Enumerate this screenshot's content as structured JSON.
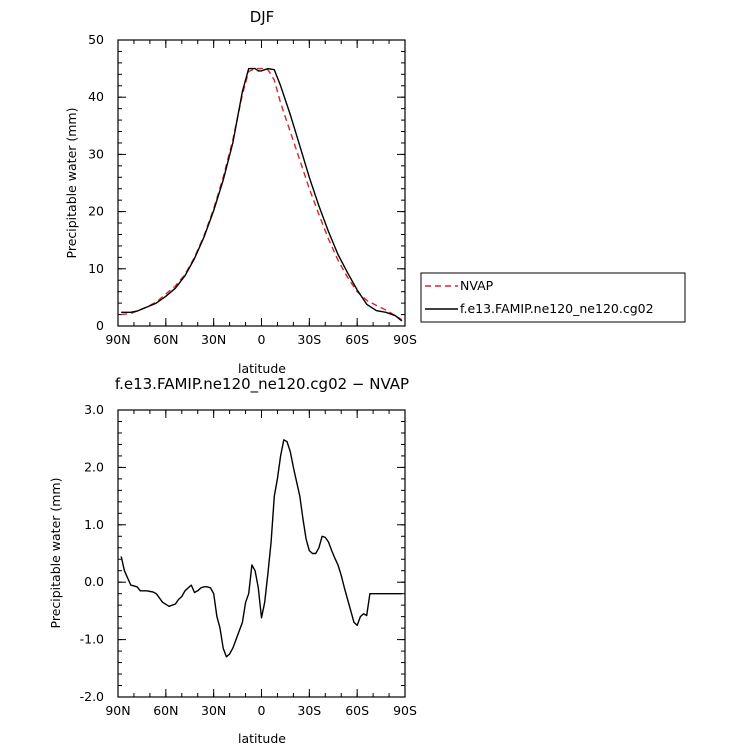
{
  "chart_data": [
    {
      "type": "line",
      "title": "DJF",
      "xlabel": "latitude",
      "ylabel": "Precipitable water (mm)",
      "xlim": [
        90,
        -90
      ],
      "ylim": [
        0,
        50
      ],
      "x_ticks": [
        90,
        60,
        30,
        0,
        -30,
        -60,
        -90
      ],
      "x_tick_labels": [
        "90N",
        "60N",
        "30N",
        "0",
        "30S",
        "60S",
        "90S"
      ],
      "y_ticks": [
        0,
        10,
        20,
        30,
        40,
        50
      ],
      "y_tick_labels": [
        "0",
        "10",
        "20",
        "30",
        "40",
        "50"
      ],
      "legend": "outside-right",
      "series": [
        {
          "name": "NVAP",
          "color": "#d62728",
          "dash": "dashed",
          "x": [
            88,
            82,
            78,
            72,
            66,
            60,
            54,
            48,
            42,
            36,
            30,
            24,
            18,
            12,
            8,
            4,
            2,
            0,
            -2,
            -4,
            -8,
            -12,
            -18,
            -24,
            -30,
            -36,
            -42,
            -48,
            -54,
            -60,
            -66,
            -72,
            -78,
            -84,
            -88
          ],
          "y": [
            2.0,
            2.2,
            2.6,
            3.3,
            4.2,
            5.6,
            7.0,
            9.0,
            12.0,
            15.8,
            20.5,
            26.0,
            32.5,
            40.5,
            44.5,
            45.0,
            45.0,
            45.0,
            45.0,
            44.8,
            43.0,
            39.0,
            34.0,
            29.0,
            24.0,
            19.5,
            15.2,
            11.5,
            8.5,
            6.0,
            4.5,
            3.6,
            2.8,
            1.8,
            1.1
          ]
        },
        {
          "name": "f.e13.FAMIP.ne120_ne120.cg02",
          "color": "#000000",
          "dash": "solid",
          "x": [
            88,
            82,
            78,
            72,
            66,
            60,
            54,
            48,
            42,
            36,
            30,
            24,
            18,
            12,
            8,
            4,
            2,
            0,
            -2,
            -4,
            -8,
            -12,
            -18,
            -24,
            -30,
            -36,
            -42,
            -48,
            -54,
            -60,
            -66,
            -72,
            -78,
            -84,
            -88
          ],
          "y": [
            2.4,
            2.4,
            2.6,
            3.3,
            4.0,
            5.2,
            6.6,
            8.8,
            11.8,
            15.6,
            20.2,
            25.5,
            32.0,
            41.0,
            45.0,
            45.0,
            44.6,
            44.6,
            44.8,
            45.0,
            44.8,
            42.0,
            37.0,
            31.5,
            26.0,
            21.0,
            16.5,
            12.5,
            9.3,
            6.3,
            3.8,
            2.7,
            2.4,
            1.8,
            0.9
          ]
        }
      ]
    },
    {
      "type": "line",
      "title": "f.e13.FAMIP.ne120_ne120.cg02 − NVAP",
      "xlabel": "latitude",
      "ylabel": "Precipitable water (mm)",
      "xlim": [
        90,
        -90
      ],
      "ylim": [
        -2.0,
        3.0
      ],
      "x_ticks": [
        90,
        60,
        30,
        0,
        -30,
        -60,
        -90
      ],
      "x_tick_labels": [
        "90N",
        "60N",
        "30N",
        "0",
        "30S",
        "60S",
        "90S"
      ],
      "y_ticks": [
        -2.0,
        -1.0,
        0.0,
        1.0,
        2.0,
        3.0
      ],
      "y_tick_labels": [
        "-2.0",
        "-1.0",
        "0.0",
        "1.0",
        "2.0",
        "3.0"
      ],
      "series": [
        {
          "color": "#000000",
          "dash": "solid",
          "x": [
            88,
            86,
            82,
            78,
            76,
            72,
            68,
            66,
            62,
            58,
            56,
            54,
            52,
            50,
            48,
            46,
            44,
            42,
            40,
            38,
            36,
            34,
            32,
            30,
            28,
            26,
            24,
            22,
            20,
            18,
            16,
            14,
            12,
            10,
            8,
            6,
            4,
            2,
            0,
            -2,
            -4,
            -6,
            -8,
            -10,
            -12,
            -14,
            -16,
            -18,
            -20,
            -22,
            -24,
            -26,
            -28,
            -30,
            -32,
            -34,
            -36,
            -38,
            -40,
            -42,
            -44,
            -46,
            -48,
            -50,
            -52,
            -54,
            -56,
            -58,
            -60,
            -62,
            -64,
            -66,
            -68,
            -70,
            -72,
            -74,
            -76,
            -78,
            -80,
            -82,
            -84,
            -86,
            -88
          ],
          "y": [
            0.45,
            0.2,
            -0.05,
            -0.08,
            -0.15,
            -0.15,
            -0.17,
            -0.2,
            -0.35,
            -0.42,
            -0.4,
            -0.38,
            -0.3,
            -0.25,
            -0.15,
            -0.1,
            -0.05,
            -0.18,
            -0.15,
            -0.1,
            -0.08,
            -0.08,
            -0.1,
            -0.2,
            -0.6,
            -0.8,
            -1.15,
            -1.3,
            -1.25,
            -1.15,
            -1.0,
            -0.85,
            -0.7,
            -0.35,
            -0.2,
            0.3,
            0.2,
            -0.1,
            -0.62,
            -0.35,
            0.15,
            0.7,
            1.5,
            1.8,
            2.2,
            2.48,
            2.45,
            2.28,
            2.0,
            1.75,
            1.5,
            1.1,
            0.75,
            0.55,
            0.5,
            0.5,
            0.6,
            0.8,
            0.78,
            0.7,
            0.55,
            0.42,
            0.3,
            0.12,
            -0.1,
            -0.3,
            -0.5,
            -0.7,
            -0.75,
            -0.6,
            -0.55,
            -0.58,
            -0.2,
            -0.2,
            -0.2,
            -0.2,
            -0.2,
            -0.2,
            -0.2,
            -0.2,
            -0.2,
            -0.2,
            -0.2
          ]
        }
      ]
    }
  ]
}
